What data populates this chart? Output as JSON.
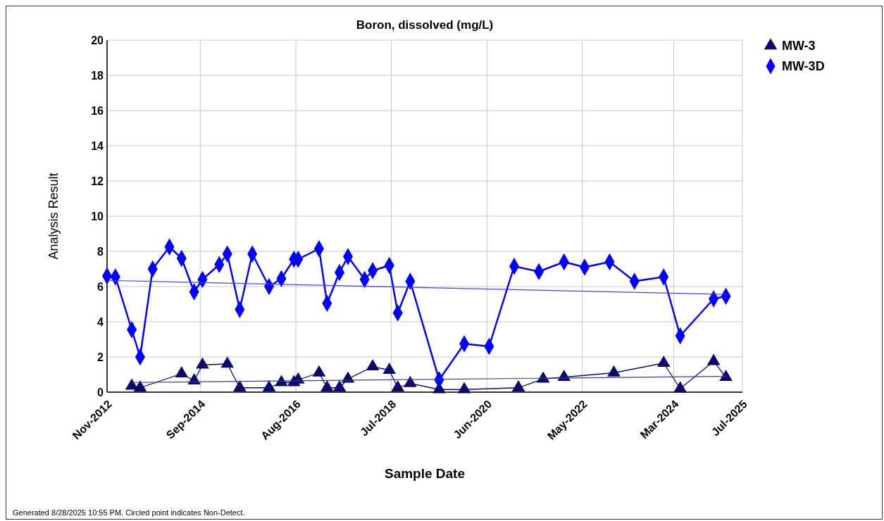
{
  "chart_data": {
    "type": "line",
    "title": "Boron, dissolved (mg/L)",
    "xlabel": "Sample Date",
    "ylabel": "Analysis Result",
    "xlim": [
      "2012-11-01",
      "2025-07-31"
    ],
    "xticks": [
      {
        "value": "2012-11-01",
        "label": "Nov-2012"
      },
      {
        "value": "2014-09-15",
        "label": "Sep-2014"
      },
      {
        "value": "2016-08-15",
        "label": "Aug-2016"
      },
      {
        "value": "2018-07-15",
        "label": "Jul-2018"
      },
      {
        "value": "2020-06-15",
        "label": "Jun-2020"
      },
      {
        "value": "2022-05-15",
        "label": "May-2022"
      },
      {
        "value": "2024-03-15",
        "label": "Mar-2024"
      },
      {
        "value": "2025-07-31",
        "label": "Jul-2025"
      }
    ],
    "ylim": [
      0,
      20
    ],
    "yticks": [
      0,
      2,
      4,
      6,
      8,
      10,
      12,
      14,
      16,
      18,
      20
    ],
    "grid": true,
    "legend": "top right",
    "line_style": "solid",
    "series": [
      {
        "name": "MW-3",
        "color": "#0a0a6e",
        "marker": "triangle",
        "x": [
          "2013-05",
          "2013-07",
          "2014-05",
          "2014-08",
          "2014-10",
          "2015-04",
          "2015-07",
          "2016-02",
          "2016-05",
          "2016-08",
          "2016-09",
          "2017-02",
          "2017-04",
          "2017-07",
          "2017-09",
          "2018-03",
          "2018-07",
          "2018-09",
          "2018-12",
          "2019-07",
          "2020-01",
          "2021-02",
          "2021-08",
          "2022-01",
          "2023-01",
          "2024-01",
          "2024-05",
          "2025-01",
          "2025-04"
        ],
        "values": [
          0.35,
          0.25,
          1.05,
          0.65,
          1.55,
          1.6,
          0.25,
          0.25,
          0.55,
          0.55,
          0.7,
          1.1,
          0.25,
          0.25,
          0.75,
          1.45,
          1.25,
          0.25,
          0.5,
          0.15,
          0.15,
          0.25,
          0.75,
          0.85,
          1.1,
          1.65,
          0.2,
          1.75,
          0.85
        ]
      },
      {
        "name": "MW-3D",
        "color": "#0000ff",
        "marker": "diamond",
        "x": [
          "2012-11",
          "2013-01",
          "2013-05",
          "2013-07",
          "2013-10",
          "2014-02",
          "2014-05",
          "2014-08",
          "2014-10",
          "2015-02",
          "2015-04",
          "2015-07",
          "2015-10",
          "2016-02",
          "2016-05",
          "2016-08",
          "2016-09",
          "2017-02",
          "2017-04",
          "2017-07",
          "2017-09",
          "2018-01",
          "2018-03",
          "2018-07",
          "2018-09",
          "2018-12",
          "2019-07",
          "2020-01",
          "2020-07",
          "2021-01",
          "2021-07",
          "2022-01",
          "2022-06",
          "2022-12",
          "2023-06",
          "2024-01",
          "2024-05",
          "2025-01",
          "2025-04"
        ],
        "values": [
          6.6,
          6.55,
          3.55,
          2.0,
          7.0,
          8.25,
          7.6,
          5.7,
          6.4,
          7.25,
          7.85,
          4.7,
          7.85,
          6.0,
          6.45,
          7.55,
          7.55,
          8.15,
          5.05,
          6.8,
          7.7,
          6.4,
          6.9,
          7.2,
          4.5,
          6.3,
          0.7,
          2.75,
          2.6,
          7.15,
          6.85,
          7.4,
          7.1,
          7.4,
          6.3,
          6.55,
          3.2,
          5.3,
          5.45
        ]
      },
      {
        "color": "#3a3a96",
        "marker": "none",
        "x": [
          "2013-05",
          "2025-04"
        ],
        "values": [
          0.55,
          0.9
        ]
      },
      {
        "color": "#4040ff",
        "marker": "none",
        "x": [
          "2012-11",
          "2025-04"
        ],
        "values": [
          6.35,
          5.55
        ]
      }
    ],
    "annotations": [
      "Generated 8/28/2025 10:55 PM. Circled point indicates Non-Detect."
    ]
  }
}
